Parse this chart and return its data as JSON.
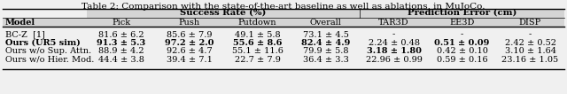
{
  "title": "Table 2: Comparison with the state-of-the-art baseline as well as ablations, in MuJoCo.",
  "group1_label": "Success Rate (%)",
  "group2_label": "Prediction Error (cm)",
  "col_headers": [
    "Model",
    "Pick",
    "Push",
    "Putdown",
    "Overall",
    "TAR3D",
    "EE3D",
    "DISP"
  ],
  "rows": [
    [
      "BC-Z  [1]",
      "81.6 ± 6.2",
      "85.6 ± 7.9",
      "49.1 ± 5.8",
      "73.1 ± 4.5",
      "-",
      "-",
      "-"
    ],
    [
      "Ours (UR5 sim)",
      "91.3 ± 5.3",
      "97.2 ± 2.0",
      "55.6 ± 8.6",
      "82.4 ± 4.9",
      "2.24 ± 0.48",
      "0.51 ± 0.09",
      "2.42 ± 0.52"
    ],
    [
      "Ours w/o Sup. Attn.",
      "88.9 ± 4.2",
      "92.6 ± 4.7",
      "55.1 ± 11.6",
      "79.9 ± 5.8",
      "3.18 ± 1.80",
      "0.42 ± 0.10",
      "3.10 ± 1.64"
    ],
    [
      "Ours w/o Hier. Mod.",
      "44.4 ± 3.8",
      "39.4 ± 7.1",
      "22.7 ± 7.9",
      "36.4 ± 3.3",
      "22.96 ± 0.99",
      "0.59 ± 0.16",
      "23.16 ± 1.05"
    ]
  ],
  "bold_cells": [
    [],
    [
      0,
      1,
      2,
      3,
      4,
      6
    ],
    [
      5
    ],
    []
  ],
  "bg_color": "#f0f0f0",
  "group_bg": "#d4d4d4",
  "font_size": 7.0,
  "title_font_size": 7.5
}
